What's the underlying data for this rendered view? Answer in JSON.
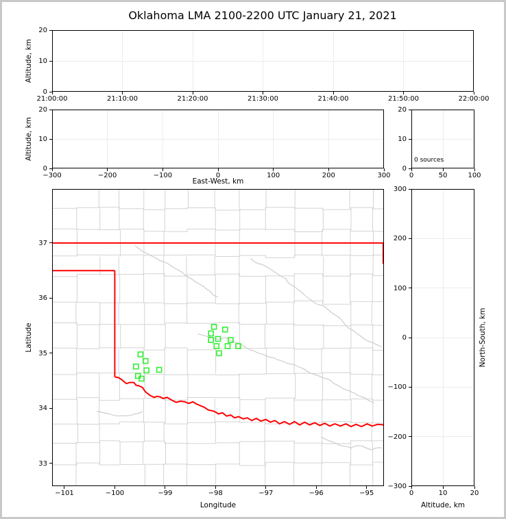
{
  "title": "Oklahoma LMA 2100-2200 UTC January 21, 2021",
  "chart_data": {
    "type": "scatter",
    "title": "Oklahoma LMA 2100-2200 UTC January 21, 2021",
    "colors": {
      "state_border": "#ff0000",
      "river": "#ff0000",
      "county_lines": "#d3d3d3",
      "station_marker": "#33ee33",
      "gridline": "#ececec"
    },
    "panels": [
      {
        "id": "time_height",
        "ylabel": "Altitude, km",
        "xrange": [
          0,
          3600
        ],
        "yrange": [
          0,
          20
        ],
        "xticks": [
          {
            "v": 0,
            "l": "21:00:00"
          },
          {
            "v": 600,
            "l": "21:10:00"
          },
          {
            "v": 1200,
            "l": "21:20:00"
          },
          {
            "v": 1800,
            "l": "21:30:00"
          },
          {
            "v": 2400,
            "l": "21:40:00"
          },
          {
            "v": 3000,
            "l": "21:50:00"
          },
          {
            "v": 3600,
            "l": "22:00:00"
          }
        ],
        "yticks": [
          {
            "v": 0,
            "l": "0"
          },
          {
            "v": 10,
            "l": "10"
          },
          {
            "v": 20,
            "l": "20"
          }
        ],
        "gridx": [
          600,
          1200,
          1800,
          2400,
          3000
        ],
        "gridy": [
          10
        ]
      },
      {
        "id": "ew_height",
        "xlabel": "East-West, km",
        "ylabel": "Altitude, km",
        "xrange": [
          -300,
          300
        ],
        "yrange": [
          0,
          20
        ],
        "xticks": [
          {
            "v": -300,
            "l": "−300"
          },
          {
            "v": -200,
            "l": "−200"
          },
          {
            "v": -100,
            "l": "−100"
          },
          {
            "v": 0,
            "l": "0"
          },
          {
            "v": 100,
            "l": "100"
          },
          {
            "v": 200,
            "l": "200"
          },
          {
            "v": 300,
            "l": "300"
          }
        ],
        "yticks": [
          {
            "v": 0,
            "l": "0"
          },
          {
            "v": 10,
            "l": "10"
          },
          {
            "v": 20,
            "l": "20"
          }
        ],
        "gridx": [
          -200,
          -100,
          0,
          100,
          200
        ],
        "gridy": [
          10
        ]
      },
      {
        "id": "alt_hist",
        "annotation": "0 sources",
        "xrange": [
          0,
          100
        ],
        "yrange": [
          0,
          20
        ],
        "xticks": [
          {
            "v": 0,
            "l": "0"
          },
          {
            "v": 50,
            "l": "50"
          },
          {
            "v": 100,
            "l": "100"
          }
        ],
        "yticks": [
          {
            "v": 0,
            "l": "0"
          },
          {
            "v": 10,
            "l": "10"
          },
          {
            "v": 20,
            "l": "20"
          }
        ],
        "gridx": [
          50
        ],
        "gridy": [
          10
        ]
      },
      {
        "id": "map",
        "xlabel": "Longitude",
        "ylabel": "Latitude",
        "xrange": [
          -101.245,
          -94.655
        ],
        "yrange": [
          32.59,
          37.98
        ],
        "xticks": [
          {
            "v": -101,
            "l": "−101"
          },
          {
            "v": -100,
            "l": "−100"
          },
          {
            "v": -99,
            "l": "−99"
          },
          {
            "v": -98,
            "l": "−98"
          },
          {
            "v": -97,
            "l": "−97"
          },
          {
            "v": -96,
            "l": "−96"
          },
          {
            "v": -95,
            "l": "−95"
          }
        ],
        "yticks": [
          {
            "v": 37,
            "l": "37"
          },
          {
            "v": 36,
            "l": "36"
          },
          {
            "v": 35,
            "l": "35"
          },
          {
            "v": 34,
            "l": "34"
          },
          {
            "v": 33,
            "l": "33"
          }
        ],
        "gridx": [],
        "gridy": []
      },
      {
        "id": "ns_height",
        "xlabel": "Altitude, km",
        "ylabel_right": "North-South, km",
        "xrange": [
          0,
          20
        ],
        "yrange": [
          -300,
          300
        ],
        "xticks": [
          {
            "v": 0,
            "l": "0"
          },
          {
            "v": 10,
            "l": "10"
          },
          {
            "v": 20,
            "l": "20"
          }
        ],
        "yticks": [
          {
            "v": 300,
            "l": "300"
          },
          {
            "v": 200,
            "l": "200"
          },
          {
            "v": 100,
            "l": "100"
          },
          {
            "v": 0,
            "l": "0"
          },
          {
            "v": -100,
            "l": "−100"
          },
          {
            "v": -200,
            "l": "−200"
          },
          {
            "v": -300,
            "l": "−300"
          }
        ],
        "gridx": [
          10
        ],
        "gridy": [
          -200,
          -100,
          0,
          100,
          200
        ]
      }
    ],
    "stations": [
      {
        "lon": -98.03,
        "lat": 35.48
      },
      {
        "lon": -97.81,
        "lat": 35.43
      },
      {
        "lon": -98.09,
        "lat": 35.36
      },
      {
        "lon": -97.95,
        "lat": 35.26
      },
      {
        "lon": -98.09,
        "lat": 35.24
      },
      {
        "lon": -97.7,
        "lat": 35.24
      },
      {
        "lon": -97.98,
        "lat": 35.13
      },
      {
        "lon": -97.76,
        "lat": 35.13
      },
      {
        "lon": -97.55,
        "lat": 35.13
      },
      {
        "lon": -97.93,
        "lat": 35.0
      },
      {
        "lon": -99.49,
        "lat": 34.98
      },
      {
        "lon": -99.39,
        "lat": 34.86
      },
      {
        "lon": -99.58,
        "lat": 34.76
      },
      {
        "lon": -99.37,
        "lat": 34.69
      },
      {
        "lon": -99.54,
        "lat": 34.59
      },
      {
        "lon": -99.47,
        "lat": 34.54
      },
      {
        "lon": -99.12,
        "lat": 34.7
      }
    ],
    "state_border": [
      [
        [
          -101.245,
          37.0
        ],
        [
          -94.66,
          37.0
        ]
      ],
      [
        [
          -94.67,
          37.0
        ],
        [
          -94.67,
          36.62
        ]
      ],
      [
        [
          -101.245,
          36.5
        ],
        [
          -100.0,
          36.5
        ]
      ],
      [
        [
          -100.0,
          36.5
        ],
        [
          -100.0,
          34.57
        ]
      ]
    ],
    "red_river": [
      [
        -100.0,
        34.57
      ],
      [
        -99.93,
        34.56
      ],
      [
        -99.86,
        34.52
      ],
      [
        -99.77,
        34.45
      ],
      [
        -99.7,
        34.47
      ],
      [
        -99.62,
        34.47
      ],
      [
        -99.58,
        34.42
      ],
      [
        -99.52,
        34.41
      ],
      [
        -99.45,
        34.38
      ],
      [
        -99.4,
        34.31
      ],
      [
        -99.35,
        34.27
      ],
      [
        -99.29,
        34.23
      ],
      [
        -99.22,
        34.2
      ],
      [
        -99.16,
        34.22
      ],
      [
        -99.1,
        34.21
      ],
      [
        -99.04,
        34.18
      ],
      [
        -98.96,
        34.2
      ],
      [
        -98.87,
        34.15
      ],
      [
        -98.78,
        34.11
      ],
      [
        -98.7,
        34.13
      ],
      [
        -98.61,
        34.12
      ],
      [
        -98.53,
        34.09
      ],
      [
        -98.45,
        34.12
      ],
      [
        -98.38,
        34.08
      ],
      [
        -98.3,
        34.05
      ],
      [
        -98.22,
        34.02
      ],
      [
        -98.14,
        33.97
      ],
      [
        -98.08,
        33.96
      ],
      [
        -98.01,
        33.94
      ],
      [
        -97.94,
        33.9
      ],
      [
        -97.86,
        33.92
      ],
      [
        -97.78,
        33.86
      ],
      [
        -97.7,
        33.88
      ],
      [
        -97.62,
        33.83
      ],
      [
        -97.54,
        33.85
      ],
      [
        -97.45,
        33.81
      ],
      [
        -97.37,
        33.83
      ],
      [
        -97.28,
        33.78
      ],
      [
        -97.19,
        33.82
      ],
      [
        -97.1,
        33.77
      ],
      [
        -97.0,
        33.8
      ],
      [
        -96.91,
        33.75
      ],
      [
        -96.82,
        33.78
      ],
      [
        -96.73,
        33.72
      ],
      [
        -96.63,
        33.76
      ],
      [
        -96.53,
        33.71
      ],
      [
        -96.43,
        33.76
      ],
      [
        -96.33,
        33.7
      ],
      [
        -96.23,
        33.75
      ],
      [
        -96.13,
        33.7
      ],
      [
        -96.03,
        33.74
      ],
      [
        -95.93,
        33.69
      ],
      [
        -95.83,
        33.73
      ],
      [
        -95.73,
        33.68
      ],
      [
        -95.63,
        33.72
      ],
      [
        -95.52,
        33.68
      ],
      [
        -95.41,
        33.72
      ],
      [
        -95.31,
        33.67
      ],
      [
        -95.21,
        33.71
      ],
      [
        -95.1,
        33.67
      ],
      [
        -94.99,
        33.72
      ],
      [
        -94.89,
        33.68
      ],
      [
        -94.78,
        33.71
      ],
      [
        -94.655,
        33.7
      ]
    ]
  }
}
